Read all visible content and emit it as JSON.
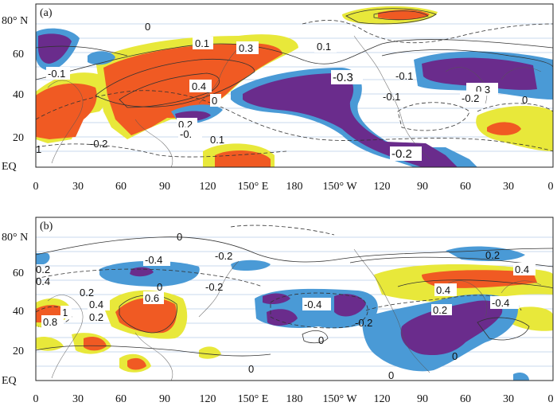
{
  "figure": {
    "colors": {
      "orange": "#f05a23",
      "yellow": "#e8e83a",
      "blue": "#4a9ad6",
      "purple": "#6a2c8c",
      "frame": "#222222",
      "gridline": "#b9cbe6",
      "contour": "#333333"
    },
    "x_ticks": [
      "0",
      "30",
      "60",
      "90",
      "120",
      "150° E",
      "180",
      "150° W",
      "120",
      "90",
      "60",
      "30",
      "0"
    ],
    "y_ticks": [
      "EQ",
      "20",
      "40",
      "60",
      "80° N"
    ],
    "panels": [
      {
        "letter": "(a)",
        "contour_labels": [
          "0",
          "0.1",
          "0.3",
          "0.1",
          "-0.1",
          "0.4",
          "0",
          "-0.3",
          "-0.1",
          "0.3",
          "-0.1",
          "-0.2",
          "0",
          "0.2",
          "-0.",
          "0.1",
          "-0.2",
          "1",
          "-0.2"
        ]
      },
      {
        "letter": "(b)",
        "contour_labels": [
          "0",
          "-0.4",
          "-0.2",
          "0",
          "-0.2",
          "0.2",
          "0.4",
          "0.2",
          "0.6",
          "0.4",
          "1",
          "0.8",
          "0.2",
          "-0.4",
          "-0.2",
          "0",
          "0.4",
          "-0.4",
          "0.2",
          "0.4",
          "0.2",
          "0",
          "0",
          "0"
        ]
      }
    ]
  }
}
